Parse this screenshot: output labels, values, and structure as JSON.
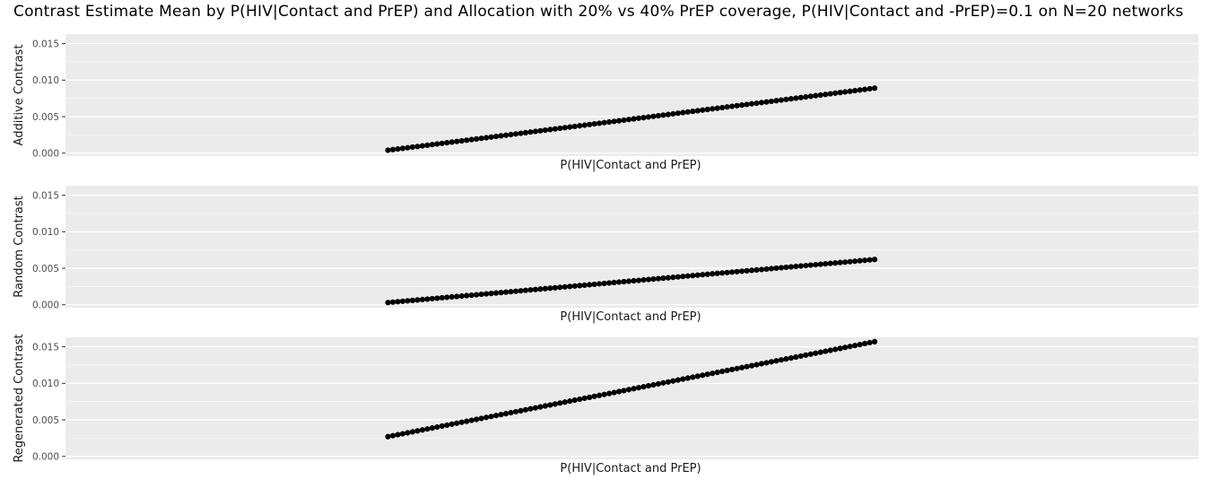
{
  "title": "Contrast Estimate Mean by P(HIV|Contact and PrEP) and Allocation with 20% vs 40% PrEP coverage, P(HIV|Contact and -PrEP)=0.1 on N=20 networks",
  "colors": {
    "panel_bg": "#EBEBEB",
    "grid": "#FFFFFF",
    "point": "#000000",
    "tick_text": "#4D4D4D"
  },
  "chart_data": [
    {
      "type": "scatter",
      "ylabel": "Additive Contrast",
      "xlabel": "P(HIV|Contact and PrEP)",
      "ylim": [
        -0.0004,
        0.0163
      ],
      "y_ticks": [
        "0.000",
        "0.005",
        "0.010",
        "0.015"
      ],
      "x_tick_labels": [],
      "grid": true,
      "series": [
        {
          "n_points": 100,
          "y_first": 0.0004,
          "y_last": 0.0089
        }
      ]
    },
    {
      "type": "scatter",
      "ylabel": "Random Contrast",
      "xlabel": "P(HIV|Contact and PrEP)",
      "ylim": [
        -0.0004,
        0.0163
      ],
      "y_ticks": [
        "0.000",
        "0.005",
        "0.010",
        "0.015"
      ],
      "x_tick_labels": [],
      "grid": true,
      "series": [
        {
          "n_points": 100,
          "y_first": 0.0003,
          "y_last": 0.0062
        }
      ]
    },
    {
      "type": "scatter",
      "ylabel": "Regenerated Contrast",
      "xlabel": "P(HIV|Contact and PrEP)",
      "ylim": [
        -0.0004,
        0.0163
      ],
      "y_ticks": [
        "0.000",
        "0.005",
        "0.010",
        "0.015"
      ],
      "x_tick_labels": [],
      "grid": true,
      "series": [
        {
          "n_points": 100,
          "y_first": 0.0027,
          "y_last": 0.0157
        }
      ]
    }
  ]
}
